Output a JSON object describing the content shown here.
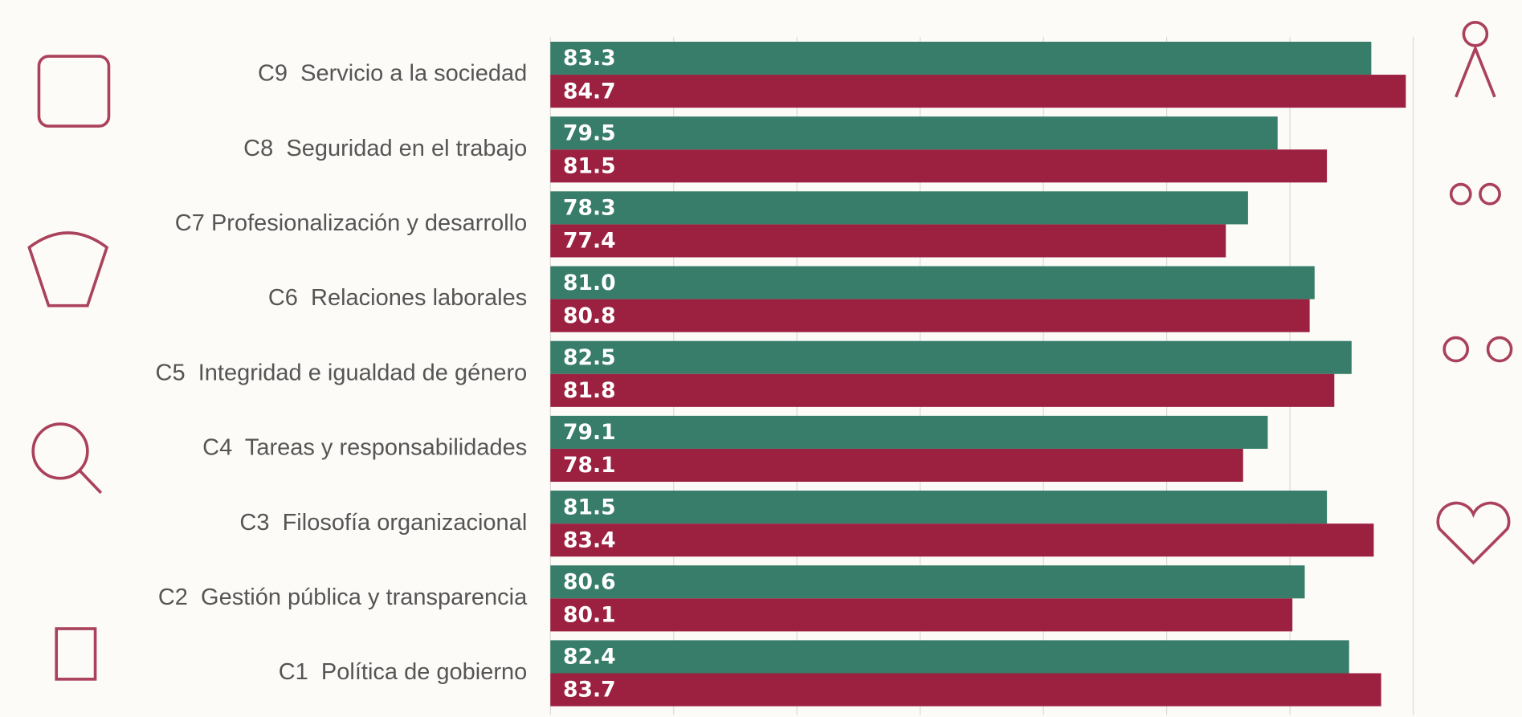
{
  "chart_data": {
    "type": "bar",
    "orientation": "horizontal",
    "categories": [
      "C9  Servicio a la sociedad",
      "C8  Seguridad en el trabajo",
      "C7 Profesionalización y desarrollo",
      "C6  Relaciones laborales",
      "C5  Integridad e igualdad de género",
      "C4  Tareas y responsabilidades",
      "C3  Filosofía organizacional",
      "C2  Gestión pública y transparencia",
      "C1  Política de gobierno"
    ],
    "series": [
      {
        "color": "#377d69",
        "values": [
          83.3,
          79.5,
          78.3,
          81.0,
          82.5,
          79.1,
          81.5,
          80.6,
          82.4
        ],
        "value_labels": [
          "83.3",
          "79.5",
          "78.3",
          "81.0",
          "82.5",
          "79.1",
          "81.5",
          "80.6",
          "82.4"
        ]
      },
      {
        "color": "#9c2140",
        "values": [
          84.7,
          81.5,
          77.4,
          80.8,
          81.8,
          78.1,
          83.4,
          80.1,
          83.7
        ],
        "value_labels": [
          "84.7",
          "81.5",
          "77.4",
          "80.8",
          "81.8",
          "78.1",
          "83.4",
          "80.1",
          "83.7"
        ]
      }
    ],
    "xlim": [
      50,
      85
    ],
    "xticks": [
      50,
      55,
      60,
      65,
      70,
      75,
      80,
      85
    ],
    "grid": true
  }
}
